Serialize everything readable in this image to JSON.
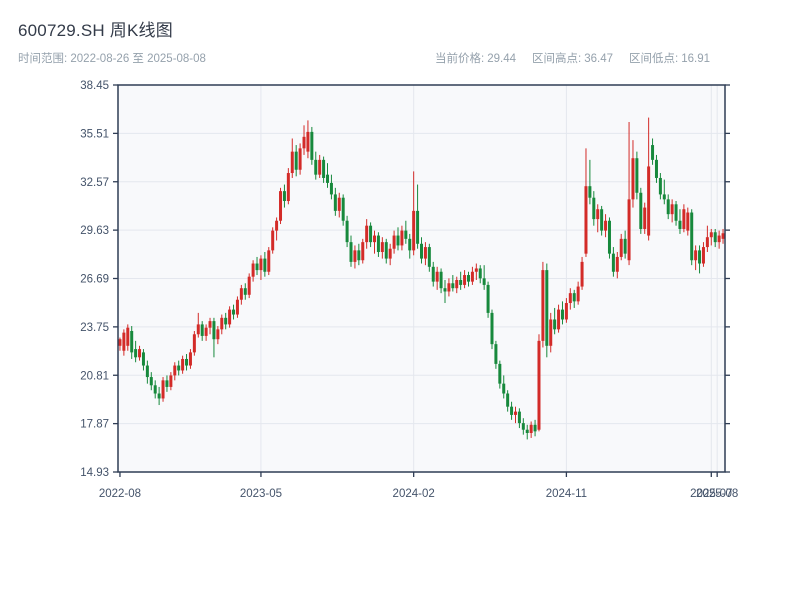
{
  "header": {
    "title": "600729.SH 周K线图",
    "date_range": "时间范围: 2022-08-26 至 2025-08-08",
    "stats": [
      {
        "label": "当前价格:",
        "value": "29.44"
      },
      {
        "label": "区间高点:",
        "value": "36.47"
      },
      {
        "label": "区间低点:",
        "value": "16.91"
      }
    ]
  },
  "chart_data": {
    "type": "candlestick",
    "symbol": "600729.SH",
    "period": "weekly",
    "title": "600729.SH 周K线图",
    "date_start": "2022-08-26",
    "date_end": "2025-08-08",
    "current_price": 29.44,
    "range_high": 36.47,
    "range_low": 16.91,
    "ylim": [
      14.93,
      38.45
    ],
    "y_ticks": [
      38.45,
      35.51,
      32.57,
      29.63,
      26.69,
      23.75,
      20.81,
      17.87,
      14.93
    ],
    "x_ticks": [
      {
        "label": "2022-08",
        "pos": 0
      },
      {
        "label": "2023-05",
        "pos": 36
      },
      {
        "label": "2024-02",
        "pos": 75
      },
      {
        "label": "2024-11",
        "pos": 114
      },
      {
        "label": "2025-07",
        "pos": 151
      },
      {
        "label": "2025-08",
        "pos": 152.5
      }
    ],
    "grid": true,
    "colors": {
      "up": "#d32b28",
      "down": "#17893c",
      "axis": "#2f3d55",
      "grid": "#e4e7ee",
      "plot_bg": "#f8f9fb",
      "tick_label": "#44536a"
    },
    "ohlc": [
      [
        22.6,
        23.1,
        22.3,
        23.0
      ],
      [
        22.3,
        23.6,
        22.0,
        23.4
      ],
      [
        22.6,
        23.9,
        22.3,
        23.7
      ],
      [
        23.5,
        23.8,
        21.8,
        22.2
      ],
      [
        22.4,
        22.9,
        21.6,
        21.9
      ],
      [
        21.9,
        22.6,
        21.7,
        22.4
      ],
      [
        22.2,
        22.4,
        21.1,
        21.4
      ],
      [
        21.4,
        21.7,
        20.3,
        20.7
      ],
      [
        20.7,
        21.0,
        19.9,
        20.2
      ],
      [
        20.2,
        20.5,
        19.4,
        19.7
      ],
      [
        19.7,
        20.1,
        19.0,
        19.4
      ],
      [
        19.4,
        20.7,
        19.2,
        20.5
      ],
      [
        20.5,
        20.8,
        19.8,
        20.1
      ],
      [
        20.1,
        21.0,
        19.9,
        20.8
      ],
      [
        20.8,
        21.6,
        20.5,
        21.4
      ],
      [
        21.4,
        21.7,
        20.8,
        21.1
      ],
      [
        21.1,
        22.0,
        20.9,
        21.8
      ],
      [
        21.8,
        22.1,
        21.1,
        21.4
      ],
      [
        21.4,
        22.4,
        21.2,
        22.2
      ],
      [
        22.2,
        23.5,
        22.0,
        23.3
      ],
      [
        23.3,
        24.6,
        23.1,
        23.9
      ],
      [
        23.9,
        24.1,
        22.9,
        23.2
      ],
      [
        23.2,
        23.9,
        22.9,
        23.7
      ],
      [
        23.7,
        24.3,
        23.3,
        24.1
      ],
      [
        24.1,
        24.3,
        21.9,
        23.0
      ],
      [
        23.0,
        23.8,
        22.7,
        23.6
      ],
      [
        23.6,
        24.5,
        23.3,
        24.3
      ],
      [
        24.3,
        24.6,
        23.6,
        23.9
      ],
      [
        23.9,
        25.0,
        23.7,
        24.8
      ],
      [
        24.8,
        25.1,
        24.2,
        24.5
      ],
      [
        24.5,
        25.6,
        24.3,
        25.4
      ],
      [
        25.4,
        26.3,
        25.1,
        26.1
      ],
      [
        26.1,
        26.4,
        25.4,
        25.7
      ],
      [
        25.7,
        27.0,
        25.5,
        26.8
      ],
      [
        26.8,
        27.8,
        26.5,
        27.6
      ],
      [
        27.6,
        28.0,
        26.9,
        27.2
      ],
      [
        27.2,
        28.1,
        26.6,
        27.9
      ],
      [
        27.9,
        28.3,
        26.8,
        27.1
      ],
      [
        27.1,
        28.6,
        26.9,
        28.4
      ],
      [
        28.4,
        29.8,
        28.2,
        29.6
      ],
      [
        29.6,
        30.4,
        29.0,
        30.2
      ],
      [
        30.2,
        32.2,
        30.0,
        32.0
      ],
      [
        32.0,
        32.4,
        31.0,
        31.4
      ],
      [
        31.4,
        33.4,
        31.2,
        33.1
      ],
      [
        33.1,
        35.2,
        32.8,
        34.4
      ],
      [
        34.4,
        34.8,
        32.9,
        33.3
      ],
      [
        33.3,
        34.9,
        33.0,
        34.6
      ],
      [
        34.6,
        36.0,
        34.2,
        35.3
      ],
      [
        34.4,
        36.3,
        34.0,
        35.6
      ],
      [
        35.6,
        35.9,
        33.6,
        33.9
      ],
      [
        33.9,
        34.4,
        32.7,
        33.0
      ],
      [
        33.0,
        34.2,
        32.8,
        33.9
      ],
      [
        33.9,
        34.1,
        32.5,
        32.8
      ],
      [
        33.0,
        33.7,
        32.2,
        32.5
      ],
      [
        32.5,
        33.0,
        31.5,
        31.8
      ],
      [
        31.8,
        32.2,
        30.5,
        30.8
      ],
      [
        30.8,
        31.9,
        30.4,
        31.6
      ],
      [
        31.6,
        31.8,
        29.9,
        30.2
      ],
      [
        30.2,
        30.5,
        28.6,
        28.9
      ],
      [
        28.9,
        29.3,
        27.4,
        27.7
      ],
      [
        27.7,
        28.7,
        27.3,
        28.4
      ],
      [
        28.4,
        28.8,
        27.5,
        27.8
      ],
      [
        27.8,
        29.1,
        27.6,
        28.9
      ],
      [
        28.9,
        30.3,
        28.5,
        29.9
      ],
      [
        29.9,
        30.1,
        28.6,
        28.9
      ],
      [
        28.9,
        29.6,
        28.2,
        29.3
      ],
      [
        29.3,
        29.5,
        28.0,
        28.3
      ],
      [
        28.3,
        29.2,
        27.9,
        28.9
      ],
      [
        28.9,
        29.1,
        27.6,
        27.9
      ],
      [
        27.9,
        28.8,
        27.5,
        28.5
      ],
      [
        28.5,
        29.6,
        28.2,
        29.3
      ],
      [
        29.3,
        29.8,
        28.4,
        28.7
      ],
      [
        28.7,
        29.9,
        28.4,
        29.6
      ],
      [
        29.6,
        30.2,
        28.8,
        29.1
      ],
      [
        29.1,
        29.4,
        27.9,
        28.4
      ],
      [
        28.4,
        33.2,
        28.1,
        30.8
      ],
      [
        30.8,
        32.4,
        28.5,
        28.8
      ],
      [
        28.8,
        29.2,
        27.6,
        27.9
      ],
      [
        27.9,
        28.9,
        27.5,
        28.6
      ],
      [
        28.6,
        28.8,
        27.1,
        27.4
      ],
      [
        27.4,
        27.7,
        26.2,
        26.5
      ],
      [
        26.5,
        27.4,
        26.0,
        27.1
      ],
      [
        27.1,
        27.3,
        25.8,
        26.1
      ],
      [
        26.1,
        26.6,
        25.2,
        25.9
      ],
      [
        25.9,
        26.7,
        25.6,
        26.4
      ],
      [
        26.4,
        26.9,
        25.9,
        26.1
      ],
      [
        26.1,
        26.8,
        25.8,
        26.6
      ],
      [
        26.6,
        27.1,
        26.0,
        26.3
      ],
      [
        26.3,
        27.2,
        26.1,
        26.9
      ],
      [
        26.9,
        27.1,
        26.2,
        26.5
      ],
      [
        26.5,
        27.4,
        26.3,
        27.1
      ],
      [
        27.1,
        27.6,
        26.6,
        27.3
      ],
      [
        27.3,
        27.5,
        26.4,
        26.7
      ],
      [
        26.7,
        27.5,
        26.0,
        26.3
      ],
      [
        26.3,
        26.5,
        24.3,
        24.6
      ],
      [
        24.6,
        24.8,
        22.4,
        22.7
      ],
      [
        22.7,
        22.9,
        21.2,
        21.5
      ],
      [
        21.5,
        21.7,
        20.0,
        20.3
      ],
      [
        20.3,
        20.8,
        19.4,
        19.7
      ],
      [
        19.7,
        19.9,
        18.6,
        18.9
      ],
      [
        18.9,
        19.2,
        18.1,
        18.4
      ],
      [
        18.4,
        18.9,
        17.9,
        18.6
      ],
      [
        18.6,
        18.8,
        17.6,
        17.9
      ],
      [
        17.9,
        18.2,
        17.2,
        17.5
      ],
      [
        17.5,
        17.8,
        16.91,
        17.3
      ],
      [
        17.3,
        18.0,
        17.0,
        17.8
      ],
      [
        17.8,
        18.1,
        17.1,
        17.4
      ],
      [
        17.5,
        23.3,
        17.4,
        22.9
      ],
      [
        22.9,
        27.7,
        22.5,
        27.2
      ],
      [
        27.2,
        27.6,
        21.9,
        22.6
      ],
      [
        22.6,
        24.6,
        22.2,
        24.2
      ],
      [
        24.2,
        24.9,
        23.3,
        23.6
      ],
      [
        23.6,
        25.1,
        23.4,
        24.8
      ],
      [
        24.8,
        25.3,
        23.9,
        24.2
      ],
      [
        24.2,
        25.5,
        24.0,
        25.2
      ],
      [
        25.2,
        26.1,
        24.8,
        25.8
      ],
      [
        25.8,
        26.0,
        24.9,
        25.3
      ],
      [
        25.3,
        26.5,
        25.1,
        26.2
      ],
      [
        26.2,
        28.0,
        26.0,
        27.7
      ],
      [
        28.2,
        34.6,
        28.0,
        32.3
      ],
      [
        32.3,
        33.9,
        31.2,
        31.6
      ],
      [
        31.6,
        32.0,
        29.9,
        30.3
      ],
      [
        30.3,
        31.2,
        29.5,
        30.9
      ],
      [
        30.9,
        31.1,
        29.3,
        29.6
      ],
      [
        29.6,
        30.6,
        29.2,
        30.2
      ],
      [
        30.2,
        30.4,
        27.9,
        28.2
      ],
      [
        28.2,
        28.6,
        26.8,
        27.1
      ],
      [
        27.1,
        28.3,
        26.7,
        28.0
      ],
      [
        28.0,
        29.4,
        27.8,
        29.1
      ],
      [
        29.1,
        29.6,
        27.9,
        28.2
      ],
      [
        27.8,
        36.2,
        27.5,
        31.5
      ],
      [
        31.5,
        35.1,
        31.0,
        34.0
      ],
      [
        34.0,
        34.4,
        31.5,
        31.9
      ],
      [
        31.9,
        32.2,
        29.4,
        29.7
      ],
      [
        29.7,
        31.3,
        29.4,
        31.0
      ],
      [
        29.3,
        36.47,
        29.0,
        33.5
      ],
      [
        34.8,
        35.2,
        33.6,
        33.9
      ],
      [
        33.9,
        34.2,
        32.5,
        32.8
      ],
      [
        32.8,
        33.1,
        31.5,
        31.8
      ],
      [
        31.8,
        32.7,
        31.2,
        31.5
      ],
      [
        31.5,
        31.8,
        30.3,
        30.6
      ],
      [
        30.6,
        31.5,
        30.1,
        31.2
      ],
      [
        31.2,
        31.4,
        29.9,
        30.2
      ],
      [
        30.2,
        30.9,
        29.4,
        29.7
      ],
      [
        29.7,
        31.2,
        29.5,
        30.9
      ],
      [
        29.6,
        31.0,
        29.3,
        30.7
      ],
      [
        30.7,
        30.9,
        27.5,
        27.8
      ],
      [
        27.8,
        28.7,
        27.2,
        28.4
      ],
      [
        28.4,
        28.7,
        27.0,
        27.6
      ],
      [
        27.6,
        28.9,
        27.4,
        28.6
      ],
      [
        28.6,
        29.9,
        28.3,
        29.2
      ],
      [
        29.2,
        29.7,
        28.7,
        29.5
      ],
      [
        29.5,
        29.7,
        28.6,
        28.9
      ],
      [
        28.9,
        29.6,
        28.5,
        29.3
      ],
      [
        29.1,
        29.7,
        28.8,
        29.44
      ]
    ]
  }
}
